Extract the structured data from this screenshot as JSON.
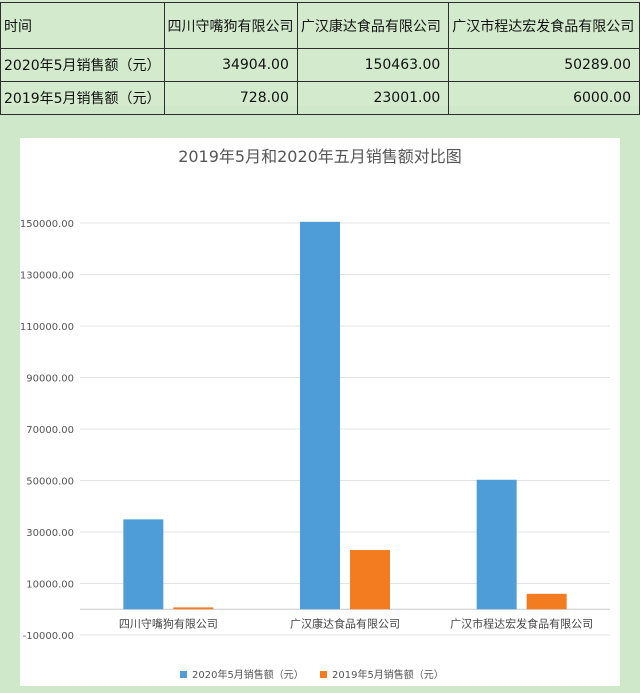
{
  "table": {
    "header": [
      "时间",
      "四川守嘴狗有限公司",
      "广汉康达食品有限公司",
      "广汉市程达宏发食品有限公司"
    ],
    "rows": [
      {
        "label": "2020年5月销售额（元）",
        "values": [
          "34904.00",
          "150463.00",
          "50289.00"
        ]
      },
      {
        "label": "2019年5月销售额（元）",
        "values": [
          "728.00",
          "23001.00",
          "6000.00"
        ]
      }
    ]
  },
  "chart_data": {
    "type": "bar",
    "title": "2019年5月和2020年五月销售额对比图",
    "categories": [
      "四川守嘴狗有限公司",
      "广汉康达食品有限公司",
      "广汉市程达宏发食品有限公司"
    ],
    "series": [
      {
        "name": "2020年5月销售额（元）",
        "values": [
          34904,
          150463,
          50289
        ],
        "color": "#4e9dd8"
      },
      {
        "name": "2019年5月销售额（元）",
        "values": [
          728,
          23001,
          6000
        ],
        "color": "#f47c20"
      }
    ],
    "yticks": [
      "150000.00",
      "130000.00",
      "110000.00",
      "90000.00",
      "70000.00",
      "50000.00",
      "30000.00",
      "10000.00",
      "-10000.00"
    ],
    "ylim": [
      -10000,
      160000
    ],
    "grid": true,
    "legend_position": "bottom"
  }
}
